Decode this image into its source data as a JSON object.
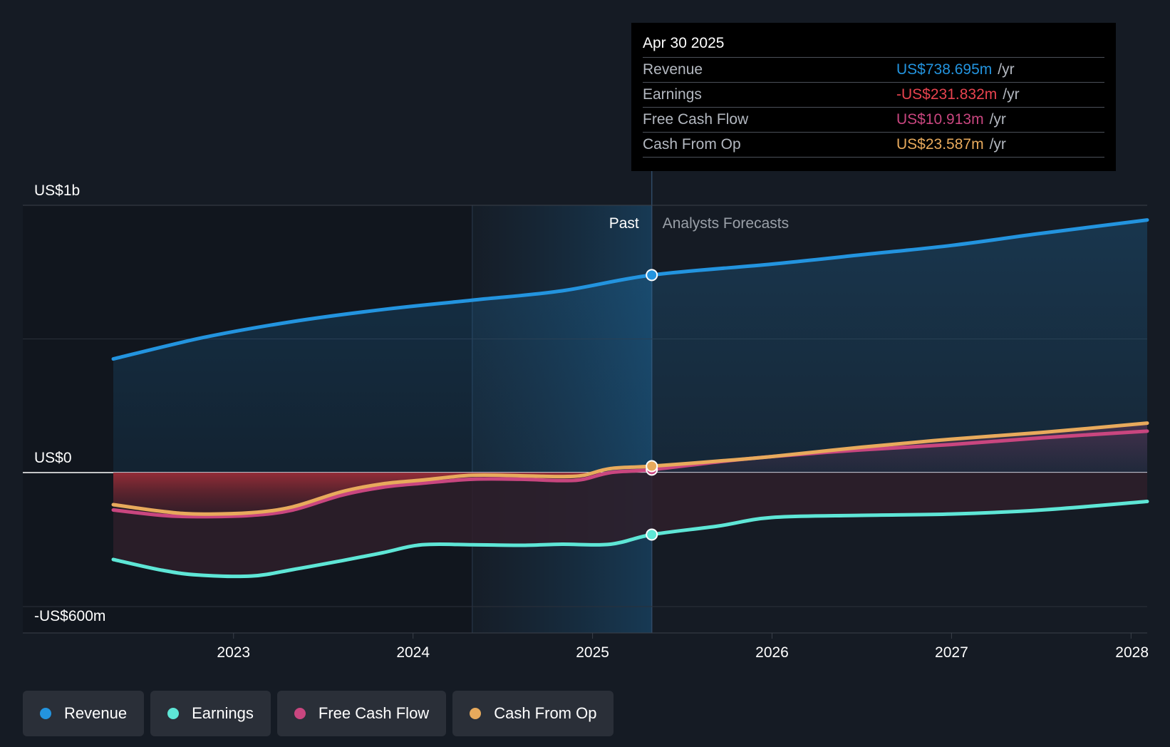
{
  "colors": {
    "background": "#151b24",
    "revenue": "#2394df",
    "earnings": "#5ee6d6",
    "free_cash_flow": "#c9467f",
    "cash_from_op": "#e8aa5c",
    "negative_area": "#9e2f39"
  },
  "tooltip": {
    "date": "Apr 30 2025",
    "rows": [
      {
        "label": "Revenue",
        "value": "US$738.695m",
        "unit": "/yr",
        "color": "#2394df"
      },
      {
        "label": "Earnings",
        "value": "-US$231.832m",
        "unit": "/yr",
        "color": "#e8434f"
      },
      {
        "label": "Free Cash Flow",
        "value": "US$10.913m",
        "unit": "/yr",
        "color": "#c9467f"
      },
      {
        "label": "Cash From Op",
        "value": "US$23.587m",
        "unit": "/yr",
        "color": "#e8aa5c"
      }
    ]
  },
  "legend": [
    {
      "label": "Revenue",
      "color": "#2394df"
    },
    {
      "label": "Earnings",
      "color": "#5ee6d6"
    },
    {
      "label": "Free Cash Flow",
      "color": "#c9467f"
    },
    {
      "label": "Cash From Op",
      "color": "#e8aa5c"
    }
  ],
  "chart_data": {
    "type": "line",
    "y_unit": "US$ m",
    "ylim": [
      -700,
      1000
    ],
    "y_tick_labels": [
      {
        "value": 1000,
        "label": "US$1b"
      },
      {
        "value": 0,
        "label": "US$0"
      },
      {
        "value": -600,
        "label": "-US$600m"
      }
    ],
    "x_tick_labels": [
      "2023",
      "2024",
      "2025",
      "2026",
      "2027",
      "2028"
    ],
    "x_tick_values": [
      2023,
      2024,
      2025,
      2026,
      2027,
      2028
    ],
    "xlim": [
      2022.08,
      2028.09
    ],
    "past_label": "Past",
    "forecast_label": "Analysts Forecasts",
    "highlight_range": [
      2024.33,
      2025.33
    ],
    "divider_x": 2025.33,
    "grid": true,
    "legend_position": "bottom",
    "series": [
      {
        "name": "Revenue",
        "key": "revenue",
        "x": [
          2022.33,
          2022.83,
          2023.33,
          2023.83,
          2024.33,
          2024.83,
          2025.33,
          2026.0,
          2026.5,
          2027.0,
          2027.5,
          2028.09
        ],
        "y": [
          425,
          505,
          565,
          610,
          645,
          680,
          739,
          780,
          815,
          850,
          895,
          945
        ]
      },
      {
        "name": "Earnings",
        "key": "earnings",
        "x": [
          2022.33,
          2022.6,
          2022.8,
          2023.1,
          2023.33,
          2023.6,
          2023.83,
          2024.05,
          2024.33,
          2024.6,
          2024.83,
          2025.1,
          2025.33,
          2025.7,
          2026.0,
          2026.5,
          2027.0,
          2027.5,
          2028.09
        ],
        "y": [
          -325,
          -365,
          -383,
          -387,
          -363,
          -330,
          -300,
          -270,
          -270,
          -272,
          -268,
          -268,
          -232,
          -200,
          -168,
          -160,
          -155,
          -140,
          -108
        ]
      },
      {
        "name": "Free Cash Flow",
        "key": "free_cash_flow",
        "x": [
          2022.33,
          2022.6,
          2022.8,
          2023.1,
          2023.33,
          2023.6,
          2023.83,
          2024.05,
          2024.33,
          2024.6,
          2024.83,
          2024.95,
          2025.1,
          2025.33,
          2025.7,
          2026.0,
          2026.5,
          2027.0,
          2027.5,
          2028.09
        ],
        "y": [
          -140,
          -160,
          -165,
          -160,
          -140,
          -85,
          -55,
          -40,
          -25,
          -25,
          -30,
          -25,
          0,
          11,
          40,
          60,
          85,
          105,
          130,
          155
        ]
      },
      {
        "name": "Cash From Op",
        "key": "cash_from_op",
        "x": [
          2022.33,
          2022.6,
          2022.8,
          2023.1,
          2023.33,
          2023.6,
          2023.83,
          2024.05,
          2024.33,
          2024.6,
          2024.83,
          2024.95,
          2025.1,
          2025.33,
          2025.7,
          2026.0,
          2026.5,
          2027.0,
          2027.5,
          2028.09
        ],
        "y": [
          -120,
          -145,
          -155,
          -150,
          -128,
          -72,
          -42,
          -28,
          -10,
          -12,
          -15,
          -10,
          15,
          24,
          43,
          60,
          95,
          125,
          150,
          185
        ]
      }
    ],
    "markers_at": 2025.33
  }
}
